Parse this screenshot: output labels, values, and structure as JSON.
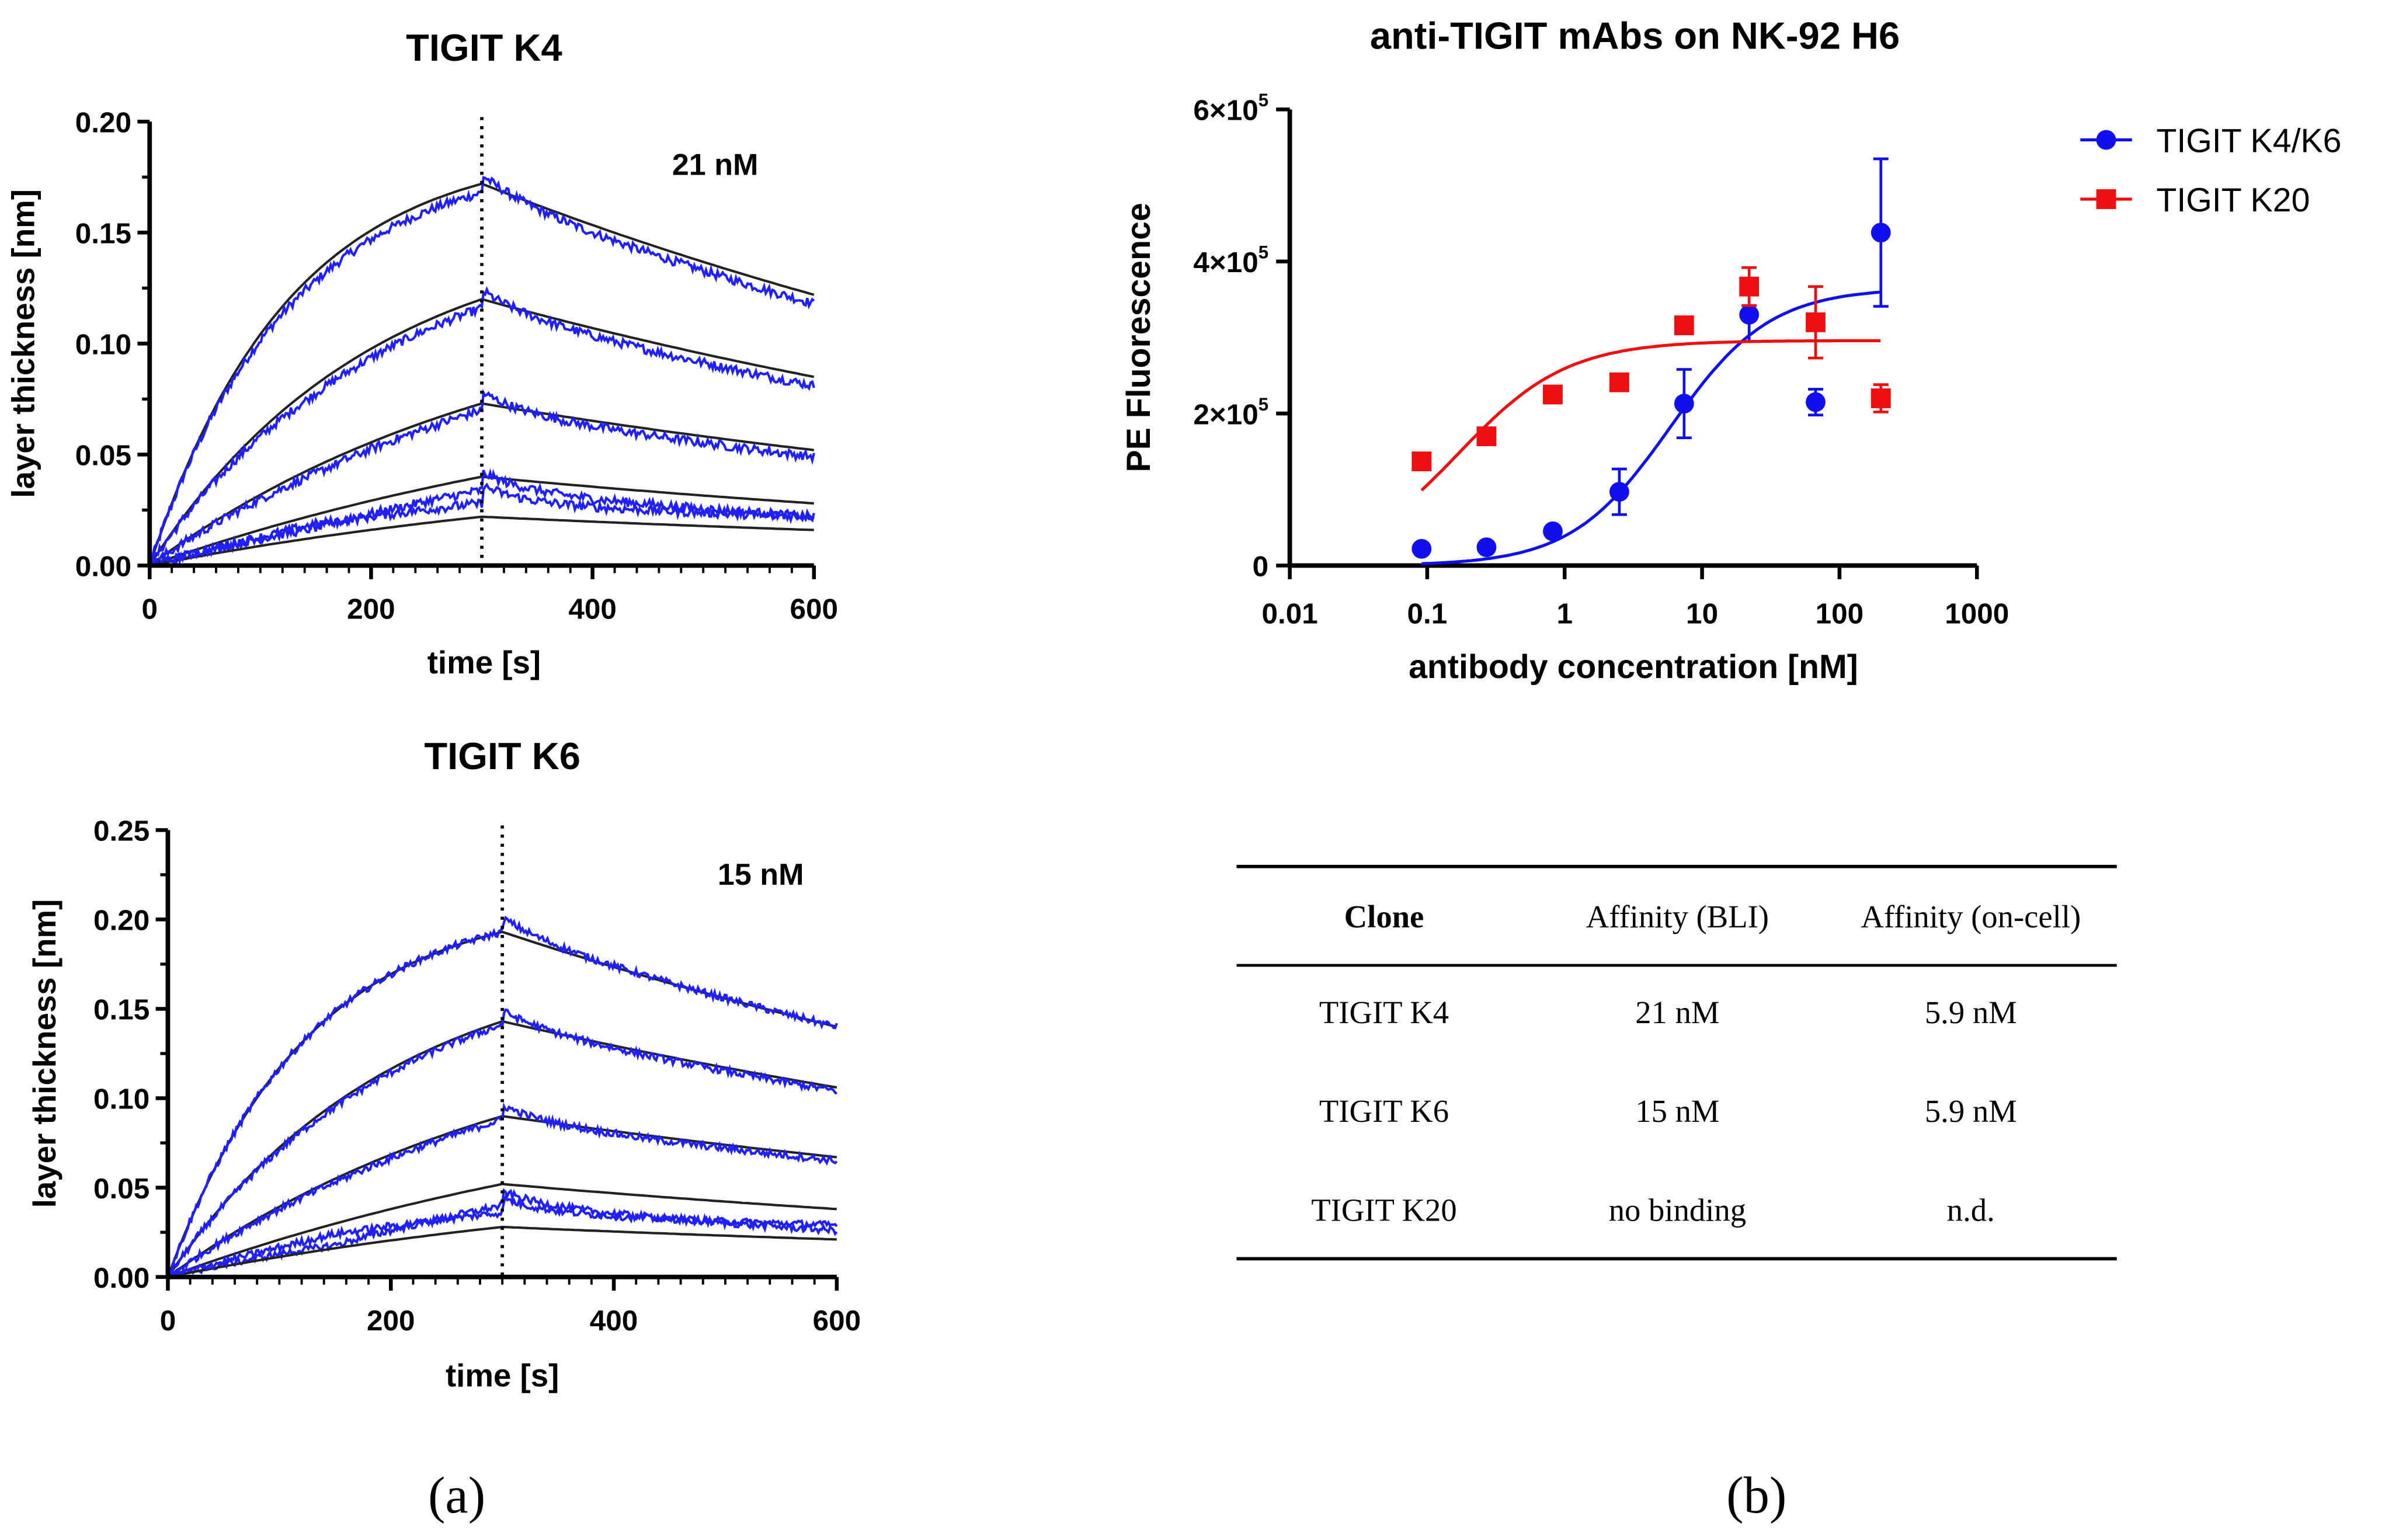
{
  "panel_labels": {
    "a": "(a)",
    "b": "(b)"
  },
  "chart_data": [
    {
      "type": "line",
      "title": "TIGIT K4",
      "xlabel": "time [s]",
      "ylabel": "layer thickness [nm]",
      "xlim": [
        0,
        600
      ],
      "ylim": [
        0,
        0.2
      ],
      "xticks": [
        "0",
        "200",
        "400",
        "600"
      ],
      "yticks": [
        "0.00",
        "0.05",
        "0.10",
        "0.15",
        "0.20"
      ],
      "annotation": "21 nM",
      "dissociation_start": 300,
      "series_colors": {
        "data": "#1f1fff",
        "fit": "#222222"
      },
      "curves": [
        {
          "r300": 0.172,
          "r600": 0.122,
          "ka": 0.008,
          "data_offset": -0.004
        },
        {
          "r300": 0.12,
          "r600": 0.085,
          "ka": 0.005,
          "data_offset": -0.004
        },
        {
          "r300": 0.073,
          "r600": 0.052,
          "ka": 0.003,
          "data_offset": -0.003
        },
        {
          "r300": 0.04,
          "r600": 0.028,
          "ka": 0.002,
          "data_offset": -0.006
        },
        {
          "r300": 0.022,
          "r600": 0.016,
          "ka": 0.002,
          "data_offset": 0.006
        }
      ]
    },
    {
      "type": "line",
      "title": "TIGIT K6",
      "xlabel": "time [s]",
      "ylabel": "layer thickness [nm]",
      "xlim": [
        0,
        600
      ],
      "ylim": [
        0,
        0.25
      ],
      "xticks": [
        "0",
        "200",
        "400",
        "600"
      ],
      "yticks": [
        "0.00",
        "0.05",
        "0.10",
        "0.15",
        "0.20",
        "0.25"
      ],
      "annotation": "15 nM",
      "dissociation_start": 300,
      "series_colors": {
        "data": "#1f1fff",
        "fit": "#222222"
      },
      "curves": [
        {
          "r300": 0.193,
          "r600": 0.14,
          "ka": 0.008,
          "data_offset": 0.0
        },
        {
          "r300": 0.143,
          "r600": 0.106,
          "ka": 0.005,
          "data_offset": -0.002
        },
        {
          "r300": 0.09,
          "r600": 0.067,
          "ka": 0.003,
          "data_offset": -0.002
        },
        {
          "r300": 0.052,
          "r600": 0.038,
          "ka": 0.002,
          "data_offset": -0.012
        },
        {
          "r300": 0.028,
          "r600": 0.021,
          "ka": 0.002,
          "data_offset": 0.008
        }
      ]
    },
    {
      "type": "scatter",
      "title": "anti-TIGIT mAbs on NK-92 H6",
      "xlabel": "antibody concentration [nM]",
      "ylabel": "PE Fluorescence",
      "xscale": "log",
      "xlim": [
        0.01,
        1000
      ],
      "ylim": [
        0,
        600000
      ],
      "xticks": [
        "0.01",
        "0.1",
        "1",
        "10",
        "100",
        "1000"
      ],
      "yticks": [
        {
          "v": 0,
          "base": "0",
          "exp": ""
        },
        {
          "v": 200000,
          "base": "2×10",
          "exp": "5"
        },
        {
          "v": 400000,
          "base": "4×10",
          "exp": "5"
        },
        {
          "v": 600000,
          "base": "6×10",
          "exp": "5"
        }
      ],
      "legend_position": "top-right",
      "x": [
        0.091,
        0.27,
        0.82,
        2.5,
        7.4,
        22,
        67,
        200
      ],
      "series": [
        {
          "name": "TIGIT K4/K6",
          "color": "#1010ee",
          "marker": "circle",
          "values": [
            22000,
            24000,
            45000,
            97000,
            213000,
            330000,
            215000,
            438000
          ],
          "errors": [
            0,
            0,
            0,
            30000,
            45000,
            35000,
            17000,
            97000
          ],
          "fit": {
            "bottom": 0,
            "top": 365000,
            "ec50": 5.9,
            "hill": 1.2
          }
        },
        {
          "name": "TIGIT K20",
          "color": "#ee1010",
          "marker": "square",
          "values": [
            137000,
            170000,
            225000,
            241000,
            316000,
            367000,
            320000,
            220000
          ],
          "errors": [
            0,
            0,
            6000,
            0,
            0,
            25000,
            47000,
            18000
          ],
          "fit": {
            "bottom": 0,
            "top": 296000,
            "ec50": 0.17,
            "hill": 1.1
          }
        }
      ]
    },
    {
      "type": "table",
      "columns": [
        "Clone",
        "Affinity (BLI)",
        "Affinity (on-cell)"
      ],
      "rows": [
        [
          "TIGIT K4",
          "21 nM",
          "5.9 nM"
        ],
        [
          "TIGIT K6",
          "15 nM",
          "5.9 nM"
        ],
        [
          "TIGIT K20",
          "no binding",
          "n.d."
        ]
      ]
    }
  ]
}
